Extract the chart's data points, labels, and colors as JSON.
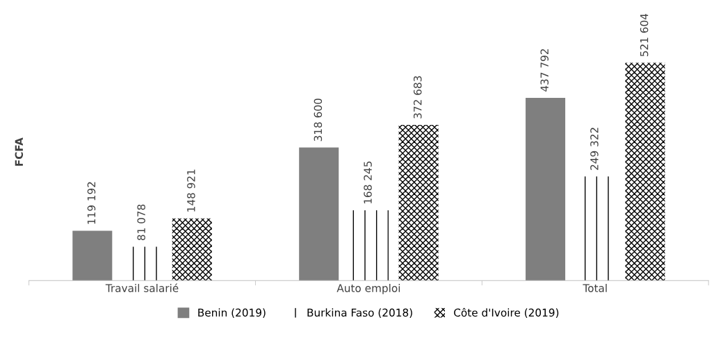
{
  "chart_data": {
    "type": "bar",
    "ylabel": "FCFA",
    "categories": [
      "Travail salarié",
      "Auto emploi",
      "Total"
    ],
    "series": [
      {
        "name": "Benin (2019)",
        "color": "#7f7f7f",
        "values": [
          119192,
          318600,
          437792
        ],
        "value_labels": [
          "119 192",
          "318 600",
          "437 792"
        ]
      },
      {
        "name": "Burkina Faso (2018)",
        "color": "#000000",
        "values": [
          81078,
          168245,
          249322
        ],
        "value_labels": [
          "81 078",
          "168 245",
          "249 322"
        ]
      },
      {
        "name": "Côte d'Ivoire (2019)",
        "color": "#000000",
        "values": [
          148921,
          372683,
          521604
        ],
        "value_labels": [
          "148 921",
          "372 683",
          "521 604"
        ]
      }
    ],
    "legend": "bottom",
    "grid": false
  }
}
